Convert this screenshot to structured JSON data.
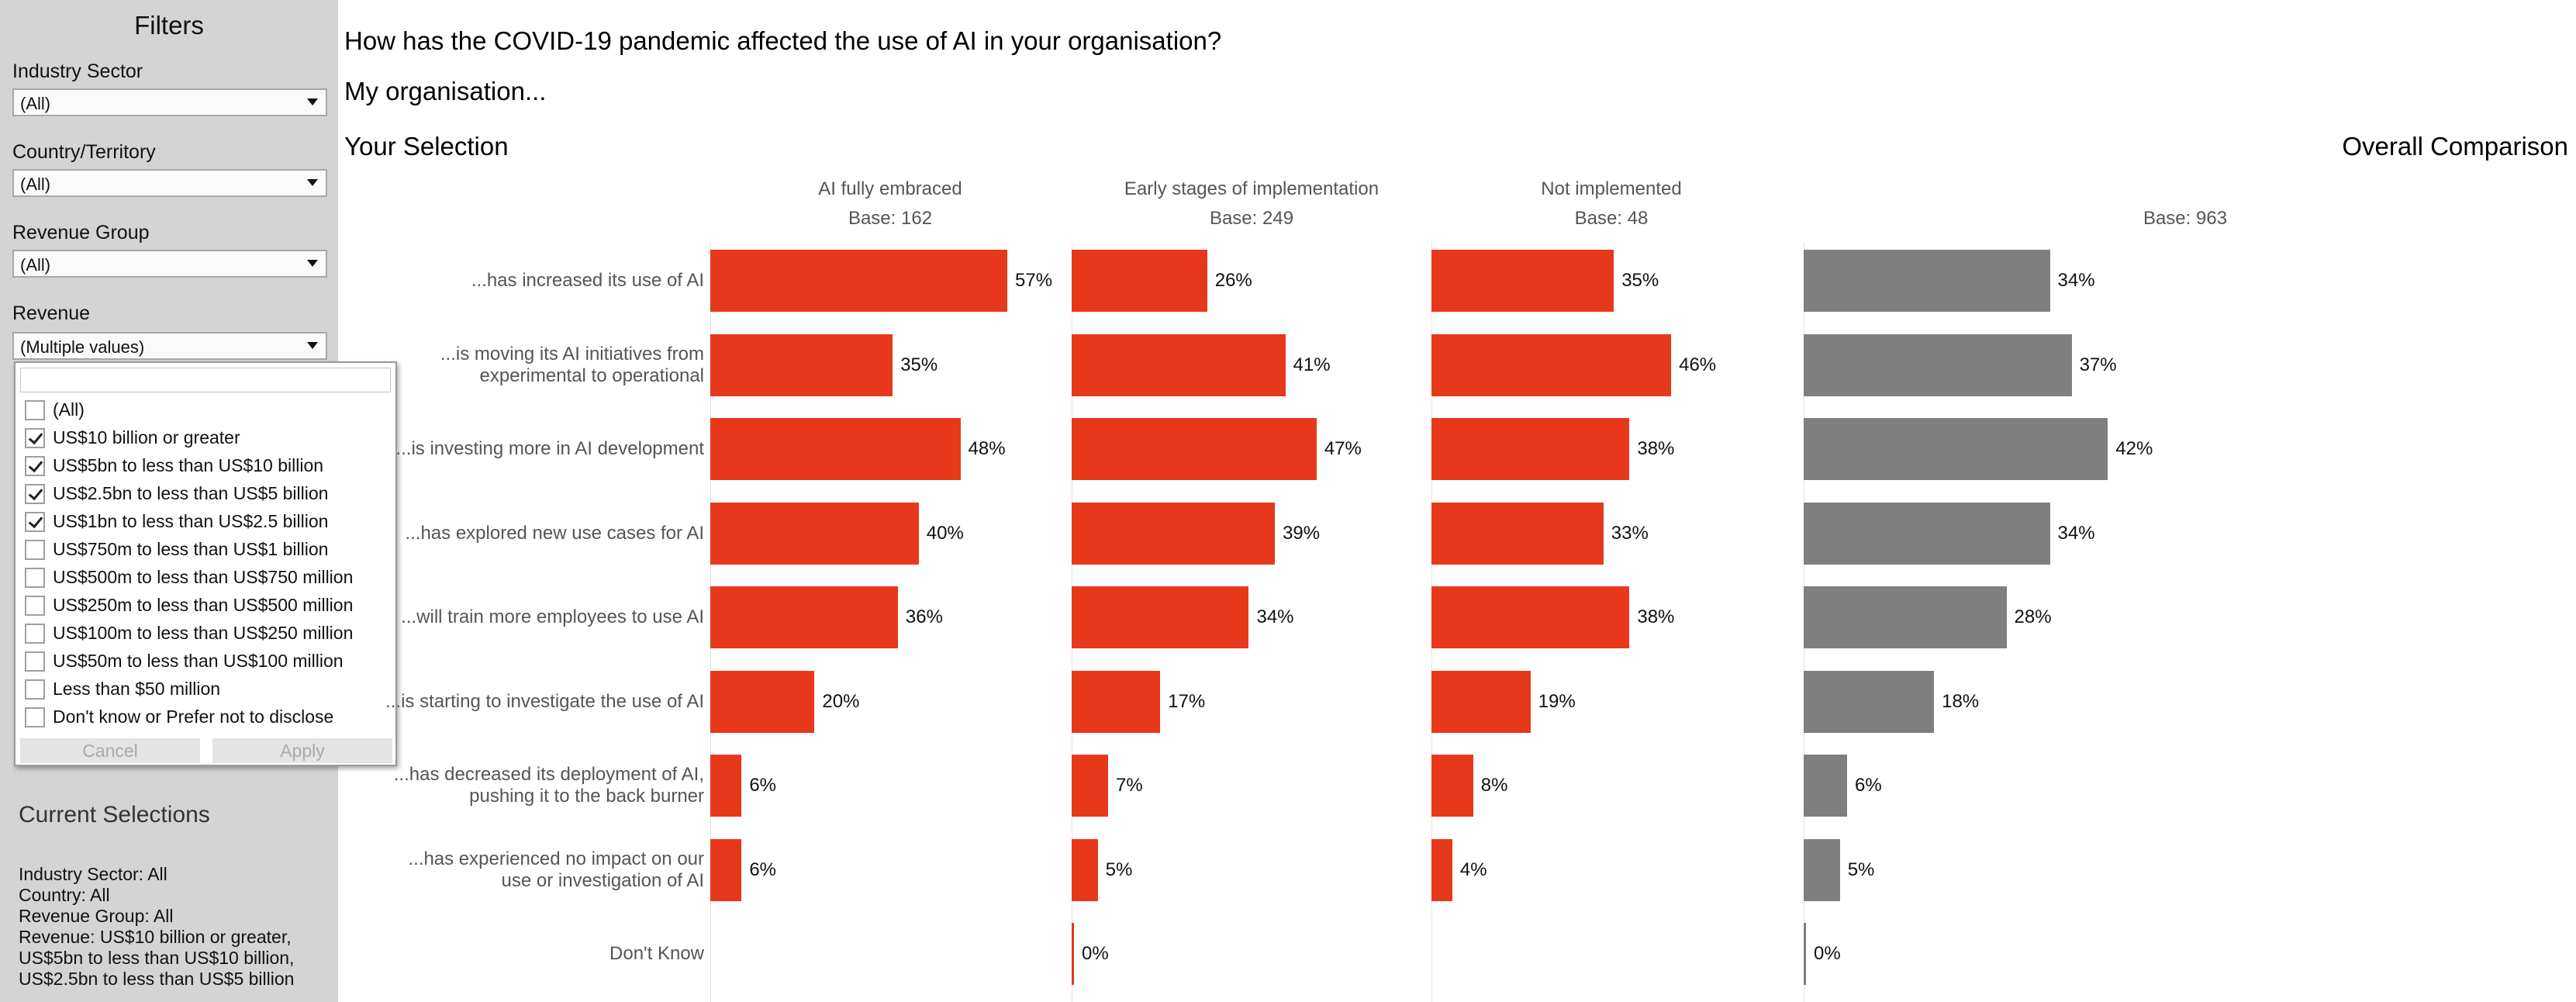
{
  "filters": {
    "title": "Filters",
    "industry": {
      "label": "Industry Sector",
      "value": "(All)"
    },
    "country": {
      "label": "Country/Territory",
      "value": "(All)"
    },
    "revenue_group": {
      "label": "Revenue Group",
      "value": "(All)"
    },
    "revenue": {
      "label": "Revenue",
      "value": "(Multiple values)"
    }
  },
  "revenue_popup": {
    "search_value": "",
    "options": [
      {
        "label": "(All)",
        "checked": false
      },
      {
        "label": "US$10 billion or greater",
        "checked": true
      },
      {
        "label": "US$5bn to less than US$10 billion",
        "checked": true
      },
      {
        "label": "US$2.5bn to less than US$5 billion",
        "checked": true
      },
      {
        "label": "US$1bn to less than US$2.5 billion",
        "checked": true
      },
      {
        "label": "US$750m to less than US$1 billion",
        "checked": false
      },
      {
        "label": "US$500m to less than US$750 million",
        "checked": false
      },
      {
        "label": "US$250m to less than US$500 million",
        "checked": false
      },
      {
        "label": "US$100m to less than US$250 million",
        "checked": false
      },
      {
        "label": "US$50m to less than US$100 million",
        "checked": false
      },
      {
        "label": "Less than $50 million",
        "checked": false
      },
      {
        "label": "Don't know or Prefer not to disclose",
        "checked": false
      }
    ],
    "cancel_label": "Cancel",
    "apply_label": "Apply"
  },
  "current_selections": {
    "title": "Current Selections",
    "lines": [
      "Industry Sector: All",
      "Country: All",
      "Revenue Group: All",
      "Revenue: US$10 billion or greater,",
      "US$5bn to less than US$10 billion,",
      "US$2.5bn to less than US$5 billion"
    ]
  },
  "main": {
    "question": "How has the COVID-19 pandemic affected the use of AI in your organisation?",
    "subtitle": "My organisation...",
    "your_selection": "Your Selection",
    "overall_comparison": "Overall Comparison"
  },
  "colors": {
    "selection_bar": "#e8381b",
    "overall_bar": "#7f7f7f",
    "sidebar_bg": "#d4d4d4"
  },
  "chart_data": {
    "type": "bar",
    "orientation": "horizontal",
    "categories": [
      "...has increased its use of AI",
      "...is moving its AI initiatives from experimental to operational",
      "...is investing more in AI development",
      "...has explored new use cases for AI",
      "...will train more employees to use AI",
      "...is starting to investigate the use of AI",
      "...has decreased its deployment of AI, pushing it to the back burner",
      "...has experienced no impact on our use or investigation of AI",
      "Don't Know"
    ],
    "series": [
      {
        "name": "AI fully embraced",
        "base": "Base: 162",
        "values": [
          57,
          35,
          48,
          40,
          36,
          20,
          6,
          6,
          null
        ]
      },
      {
        "name": "Early stages of implementation",
        "base": "Base: 249",
        "values": [
          26,
          41,
          47,
          39,
          34,
          17,
          7,
          5,
          0
        ]
      },
      {
        "name": "Not implemented",
        "base": "Base: 48",
        "values": [
          35,
          46,
          38,
          33,
          38,
          19,
          8,
          4,
          null
        ]
      },
      {
        "name": "",
        "base": "Base: 963",
        "values": [
          34,
          37,
          42,
          34,
          28,
          18,
          6,
          5,
          0
        ]
      }
    ],
    "value_suffix": "%",
    "grid": false
  }
}
